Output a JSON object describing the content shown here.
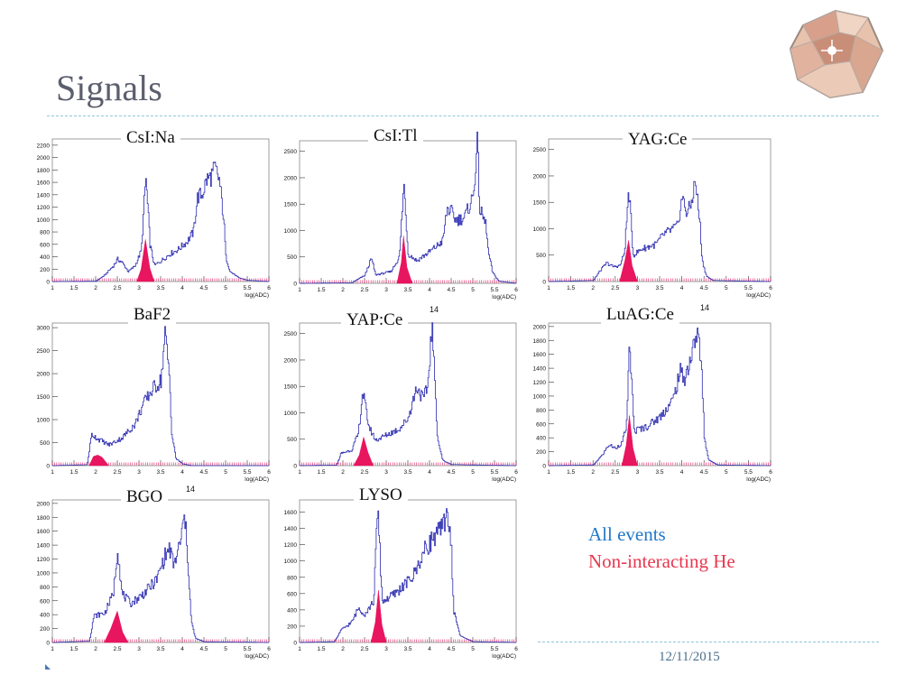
{
  "slide": {
    "title": "Signals",
    "date": "12/11/2015",
    "legend": {
      "all_events": {
        "label": "All events",
        "color": "#1f77c8"
      },
      "non_interacting": {
        "label": "Non-interacting He",
        "color": "#e8374f"
      }
    },
    "stray_marks": [
      "14",
      "14",
      "14"
    ]
  },
  "colors": {
    "all_line": "#2b2bb0",
    "he_fill": "#e8155f",
    "frame": "#888888"
  },
  "chart_data": [
    {
      "type": "line",
      "crystal": "CsI:Na",
      "xlabel": "log(ADC)",
      "xlim": [
        1,
        6
      ],
      "ylim": [
        0,
        2300
      ],
      "yticks": [
        0,
        200,
        400,
        600,
        800,
        1000,
        1200,
        1400,
        1600,
        1800,
        2000,
        2200
      ],
      "series": [
        {
          "name": "All events",
          "points": [
            [
              1,
              0
            ],
            [
              2,
              5
            ],
            [
              2.2,
              100
            ],
            [
              2.4,
              250
            ],
            [
              2.5,
              360
            ],
            [
              2.6,
              310
            ],
            [
              2.75,
              160
            ],
            [
              2.9,
              250
            ],
            [
              3.05,
              500
            ],
            [
              3.15,
              1690
            ],
            [
              3.25,
              600
            ],
            [
              3.35,
              260
            ],
            [
              3.5,
              330
            ],
            [
              3.7,
              440
            ],
            [
              3.9,
              520
            ],
            [
              4.1,
              640
            ],
            [
              4.25,
              800
            ],
            [
              4.35,
              1370
            ],
            [
              4.45,
              1400
            ],
            [
              4.55,
              1630
            ],
            [
              4.65,
              1690
            ],
            [
              4.75,
              1820
            ],
            [
              4.85,
              1630
            ],
            [
              4.95,
              1000
            ],
            [
              5.0,
              400
            ],
            [
              5.1,
              160
            ],
            [
              5.3,
              60
            ],
            [
              5.5,
              20
            ],
            [
              6,
              0
            ]
          ]
        },
        {
          "name": "Non-interacting He",
          "points": [
            [
              2.95,
              0
            ],
            [
              3.05,
              200
            ],
            [
              3.15,
              680
            ],
            [
              3.25,
              220
            ],
            [
              3.35,
              0
            ]
          ]
        }
      ]
    },
    {
      "type": "line",
      "crystal": "CsI:Tl",
      "xlabel": "log(ADC)",
      "xlim": [
        1,
        6
      ],
      "ylim": [
        0,
        2700
      ],
      "yticks": [
        0,
        500,
        1000,
        1500,
        2000,
        2500
      ],
      "series": [
        {
          "name": "All events",
          "points": [
            [
              1,
              0
            ],
            [
              2.2,
              10
            ],
            [
              2.5,
              150
            ],
            [
              2.65,
              470
            ],
            [
              2.75,
              160
            ],
            [
              3.1,
              220
            ],
            [
              3.3,
              500
            ],
            [
              3.4,
              1890
            ],
            [
              3.5,
              560
            ],
            [
              3.7,
              430
            ],
            [
              4.0,
              600
            ],
            [
              4.3,
              800
            ],
            [
              4.4,
              1420
            ],
            [
              4.5,
              1350
            ],
            [
              4.6,
              1200
            ],
            [
              4.8,
              1240
            ],
            [
              5.0,
              1650
            ],
            [
              5.1,
              2650
            ],
            [
              5.15,
              1400
            ],
            [
              5.3,
              1100
            ],
            [
              5.35,
              600
            ],
            [
              5.45,
              200
            ],
            [
              5.6,
              40
            ],
            [
              6,
              0
            ]
          ]
        },
        {
          "name": "Non-interacting He",
          "points": [
            [
              3.25,
              0
            ],
            [
              3.35,
              400
            ],
            [
              3.4,
              900
            ],
            [
              3.48,
              300
            ],
            [
              3.6,
              0
            ]
          ]
        }
      ]
    },
    {
      "type": "line",
      "crystal": "YAG:Ce",
      "xlabel": "log(ADC)",
      "xlim": [
        1,
        6
      ],
      "ylim": [
        0,
        2700
      ],
      "yticks": [
        0,
        500,
        1000,
        1500,
        2000,
        2500
      ],
      "series": [
        {
          "name": "All events",
          "points": [
            [
              1,
              0
            ],
            [
              2.0,
              20
            ],
            [
              2.15,
              200
            ],
            [
              2.3,
              350
            ],
            [
              2.45,
              280
            ],
            [
              2.6,
              300
            ],
            [
              2.7,
              550
            ],
            [
              2.8,
              1750
            ],
            [
              2.9,
              500
            ],
            [
              3.1,
              620
            ],
            [
              3.4,
              700
            ],
            [
              3.6,
              900
            ],
            [
              3.9,
              1050
            ],
            [
              4.0,
              1600
            ],
            [
              4.1,
              1300
            ],
            [
              4.2,
              1450
            ],
            [
              4.3,
              1920
            ],
            [
              4.4,
              1100
            ],
            [
              4.45,
              400
            ],
            [
              4.55,
              100
            ],
            [
              4.7,
              20
            ],
            [
              6,
              0
            ]
          ]
        },
        {
          "name": "Non-interacting He",
          "points": [
            [
              2.6,
              0
            ],
            [
              2.72,
              400
            ],
            [
              2.8,
              780
            ],
            [
              2.88,
              300
            ],
            [
              3.0,
              0
            ]
          ]
        }
      ]
    },
    {
      "type": "line",
      "crystal": "BaF2",
      "xlabel": "log(ADC)",
      "xlim": [
        1,
        6
      ],
      "ylim": [
        0,
        3100
      ],
      "yticks": [
        0,
        500,
        1000,
        1500,
        2000,
        2500,
        3000
      ],
      "series": [
        {
          "name": "All events",
          "points": [
            [
              1,
              0
            ],
            [
              1.8,
              20
            ],
            [
              1.9,
              680
            ],
            [
              2.05,
              580
            ],
            [
              2.3,
              450
            ],
            [
              2.6,
              600
            ],
            [
              2.9,
              900
            ],
            [
              3.1,
              1350
            ],
            [
              3.3,
              1650
            ],
            [
              3.5,
              1850
            ],
            [
              3.6,
              2850
            ],
            [
              3.7,
              1900
            ],
            [
              3.75,
              700
            ],
            [
              3.85,
              150
            ],
            [
              4.0,
              40
            ],
            [
              4.2,
              0
            ],
            [
              6,
              0
            ]
          ]
        },
        {
          "name": "Non-interacting He",
          "points": [
            [
              1.85,
              0
            ],
            [
              1.95,
              200
            ],
            [
              2.05,
              230
            ],
            [
              2.15,
              180
            ],
            [
              2.3,
              0
            ]
          ]
        }
      ]
    },
    {
      "type": "line",
      "crystal": "YAP:Ce",
      "xlabel": "log(ADC)",
      "xlim": [
        1,
        6
      ],
      "ylim": [
        0,
        2700
      ],
      "yticks": [
        0,
        500,
        1000,
        1500,
        2000,
        2500
      ],
      "series": [
        {
          "name": "All events",
          "points": [
            [
              1,
              0
            ],
            [
              1.85,
              10
            ],
            [
              1.95,
              230
            ],
            [
              2.2,
              300
            ],
            [
              2.35,
              600
            ],
            [
              2.45,
              1400
            ],
            [
              2.6,
              720
            ],
            [
              2.75,
              480
            ],
            [
              3.0,
              580
            ],
            [
              3.3,
              700
            ],
            [
              3.5,
              900
            ],
            [
              3.7,
              1500
            ],
            [
              3.85,
              1250
            ],
            [
              3.95,
              1500
            ],
            [
              4.05,
              2650
            ],
            [
              4.12,
              1500
            ],
            [
              4.18,
              500
            ],
            [
              4.3,
              100
            ],
            [
              4.5,
              20
            ],
            [
              6,
              0
            ]
          ]
        },
        {
          "name": "Non-interacting He",
          "points": [
            [
              2.25,
              0
            ],
            [
              2.38,
              200
            ],
            [
              2.48,
              540
            ],
            [
              2.58,
              250
            ],
            [
              2.7,
              0
            ]
          ]
        }
      ]
    },
    {
      "type": "line",
      "crystal": "LuAG:Ce",
      "xlabel": "log(ADC)",
      "xlim": [
        1,
        6
      ],
      "ylim": [
        0,
        2050
      ],
      "yticks": [
        0,
        200,
        400,
        600,
        800,
        1000,
        1200,
        1400,
        1600,
        1800,
        2000
      ],
      "series": [
        {
          "name": "All events",
          "points": [
            [
              1,
              0
            ],
            [
              2.0,
              10
            ],
            [
              2.2,
              150
            ],
            [
              2.35,
              300
            ],
            [
              2.5,
              250
            ],
            [
              2.65,
              330
            ],
            [
              2.75,
              600
            ],
            [
              2.82,
              1780
            ],
            [
              2.92,
              500
            ],
            [
              3.2,
              560
            ],
            [
              3.5,
              700
            ],
            [
              3.8,
              950
            ],
            [
              3.95,
              1350
            ],
            [
              4.05,
              1250
            ],
            [
              4.2,
              1550
            ],
            [
              4.35,
              1950
            ],
            [
              4.45,
              1250
            ],
            [
              4.5,
              400
            ],
            [
              4.6,
              80
            ],
            [
              4.8,
              10
            ],
            [
              6,
              0
            ]
          ]
        },
        {
          "name": "Non-interacting He",
          "points": [
            [
              2.65,
              0
            ],
            [
              2.75,
              300
            ],
            [
              2.82,
              720
            ],
            [
              2.9,
              250
            ],
            [
              3.0,
              0
            ]
          ]
        }
      ]
    },
    {
      "type": "line",
      "crystal": "BGO",
      "xlabel": "log(ADC)",
      "xlim": [
        1,
        6
      ],
      "ylim": [
        0,
        2050
      ],
      "yticks": [
        0,
        200,
        400,
        600,
        800,
        1000,
        1200,
        1400,
        1600,
        1800,
        2000
      ],
      "series": [
        {
          "name": "All events",
          "points": [
            [
              1,
              0
            ],
            [
              1.85,
              20
            ],
            [
              1.95,
              380
            ],
            [
              2.2,
              420
            ],
            [
              2.4,
              700
            ],
            [
              2.5,
              1380
            ],
            [
              2.6,
              700
            ],
            [
              2.8,
              560
            ],
            [
              3.1,
              700
            ],
            [
              3.4,
              900
            ],
            [
              3.6,
              1250
            ],
            [
              3.7,
              1350
            ],
            [
              3.8,
              1100
            ],
            [
              3.95,
              1450
            ],
            [
              4.05,
              1820
            ],
            [
              4.12,
              1200
            ],
            [
              4.2,
              300
            ],
            [
              4.3,
              60
            ],
            [
              4.5,
              10
            ],
            [
              6,
              0
            ]
          ]
        },
        {
          "name": "Non-interacting He",
          "points": [
            [
              2.2,
              0
            ],
            [
              2.35,
              200
            ],
            [
              2.5,
              450
            ],
            [
              2.62,
              150
            ],
            [
              2.75,
              0
            ]
          ]
        }
      ]
    },
    {
      "type": "line",
      "crystal": "LYSO",
      "xlabel": "log(ADC)",
      "xlim": [
        1,
        6
      ],
      "ylim": [
        0,
        1750
      ],
      "yticks": [
        0,
        200,
        400,
        600,
        800,
        1000,
        1200,
        1400,
        1600
      ],
      "series": [
        {
          "name": "All events",
          "points": [
            [
              1,
              0
            ],
            [
              1.8,
              10
            ],
            [
              1.95,
              150
            ],
            [
              2.2,
              250
            ],
            [
              2.35,
              420
            ],
            [
              2.5,
              350
            ],
            [
              2.7,
              500
            ],
            [
              2.8,
              1650
            ],
            [
              2.9,
              500
            ],
            [
              3.2,
              600
            ],
            [
              3.6,
              800
            ],
            [
              3.9,
              1150
            ],
            [
              4.1,
              1300
            ],
            [
              4.3,
              1400
            ],
            [
              4.4,
              1650
            ],
            [
              4.5,
              1100
            ],
            [
              4.55,
              400
            ],
            [
              4.7,
              80
            ],
            [
              5.0,
              10
            ],
            [
              6,
              0
            ]
          ]
        },
        {
          "name": "Non-interacting He",
          "points": [
            [
              2.65,
              0
            ],
            [
              2.75,
              250
            ],
            [
              2.82,
              640
            ],
            [
              2.9,
              220
            ],
            [
              3.0,
              0
            ]
          ]
        }
      ]
    }
  ]
}
